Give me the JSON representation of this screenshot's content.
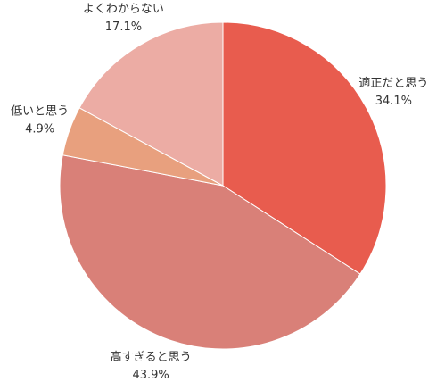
{
  "chart_data": {
    "type": "pie",
    "categories": [
      "適正だと思う",
      "高すぎると思う",
      "低いと思う",
      "よくわからない"
    ],
    "values": [
      34.1,
      43.9,
      4.9,
      17.1
    ],
    "value_labels": [
      "34.1%",
      "43.9%",
      "4.9%",
      "17.1%"
    ],
    "colors": [
      "#e85c4e",
      "#d98078",
      "#e8a07e",
      "#ecaca4"
    ]
  }
}
